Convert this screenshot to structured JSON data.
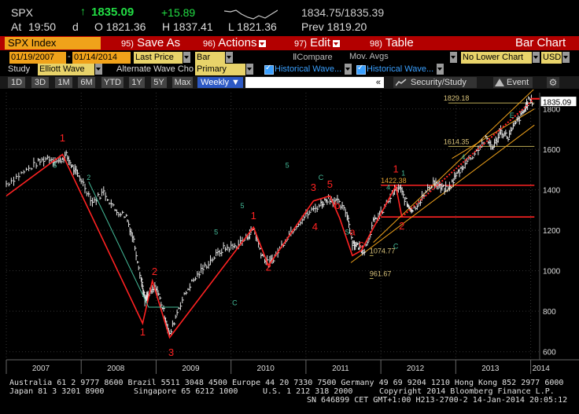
{
  "quote": {
    "ticker": "SPX",
    "up_arrow": "↑",
    "last": "1835.09",
    "change": "+15.89",
    "bid_ask": "1834.75/1835.39",
    "at_label": "At",
    "time": "19:50",
    "d_label": "d",
    "open": "O 1821.36",
    "high": "H 1837.41",
    "low": "L 1821.36",
    "prev": "Prev  1819.20"
  },
  "menu": {
    "security": "SPX Index",
    "save_num": "95)",
    "save": "Save As",
    "actions_num": "96)",
    "actions": "Actions",
    "edit_num": "97)",
    "edit": "Edit",
    "table_num": "98)",
    "table": "Table",
    "bar_chart": "Bar Chart"
  },
  "settings": {
    "start_date": "01/19/2007",
    "dash": "-",
    "end_date": "01/14/2014",
    "field": "Last Price",
    "style": "Bar",
    "compare": "Compare",
    "mov_avgs": "Mov. Avgs",
    "lower_chart": "No Lower Chart",
    "currency": "USD",
    "study_label": "Study",
    "study": "Elliott Wave",
    "alt_wave": "Alternate Wave Cho",
    "primary": "Primary",
    "hist1": "Historical Wave...",
    "hist2": "Historical Wave..."
  },
  "timeframes": [
    "1D",
    "3D",
    "1M",
    "6M",
    "YTD",
    "1Y",
    "5Y",
    "Max"
  ],
  "period": "Weekly ▼",
  "tool": {
    "security_study": "Security/Study",
    "event": "Event",
    "chart_icon": "chart-icon",
    "event_icon": "event-icon",
    "gear_icon": "gear-icon"
  },
  "colors": {
    "accent_red": "#b30000",
    "up": "#22dd44",
    "field_bg": "#e8d36a",
    "selected": "#2d59c4",
    "wave_red": "#ff2222",
    "wave_channel": "#f0a21a"
  },
  "chart_data": {
    "type": "line",
    "x_ticks": [
      "2007",
      "2008",
      "2009",
      "2010",
      "2011",
      "2012",
      "2013",
      "2014"
    ],
    "y_ticks": [
      600,
      800,
      1000,
      1200,
      1400,
      1600,
      1800
    ],
    "ylim": [
      560,
      1880
    ],
    "price_tag": "1835.09",
    "grid": true,
    "series": [
      {
        "values": [
          [
            2007.0,
            1430
          ],
          [
            2007.2,
            1480
          ],
          [
            2007.4,
            1530
          ],
          [
            2007.55,
            1560
          ],
          [
            2007.7,
            1540
          ],
          [
            2007.8,
            1570
          ],
          [
            2007.9,
            1500
          ],
          [
            2008.0,
            1450
          ],
          [
            2008.15,
            1340
          ],
          [
            2008.3,
            1390
          ],
          [
            2008.45,
            1300
          ],
          [
            2008.6,
            1270
          ],
          [
            2008.7,
            1150
          ],
          [
            2008.8,
            960
          ],
          [
            2008.85,
            850
          ],
          [
            2008.9,
            880
          ],
          [
            2009.0,
            920
          ],
          [
            2009.1,
            800
          ],
          [
            2009.18,
            680
          ],
          [
            2009.3,
            820
          ],
          [
            2009.45,
            930
          ],
          [
            2009.6,
            1000
          ],
          [
            2009.75,
            1060
          ],
          [
            2009.9,
            1110
          ],
          [
            2010.05,
            1120
          ],
          [
            2010.2,
            1160
          ],
          [
            2010.3,
            1210
          ],
          [
            2010.4,
            1090
          ],
          [
            2010.5,
            1030
          ],
          [
            2010.6,
            1080
          ],
          [
            2010.75,
            1170
          ],
          [
            2010.9,
            1240
          ],
          [
            2011.05,
            1290
          ],
          [
            2011.2,
            1330
          ],
          [
            2011.3,
            1360
          ],
          [
            2011.42,
            1340
          ],
          [
            2011.55,
            1280
          ],
          [
            2011.62,
            1140
          ],
          [
            2011.7,
            1120
          ],
          [
            2011.78,
            1100
          ],
          [
            2011.9,
            1240
          ],
          [
            2012.0,
            1280
          ],
          [
            2012.15,
            1380
          ],
          [
            2012.25,
            1410
          ],
          [
            2012.35,
            1330
          ],
          [
            2012.42,
            1300
          ],
          [
            2012.55,
            1360
          ],
          [
            2012.7,
            1440
          ],
          [
            2012.8,
            1410
          ],
          [
            2012.9,
            1400
          ],
          [
            2013.0,
            1470
          ],
          [
            2013.1,
            1520
          ],
          [
            2013.25,
            1580
          ],
          [
            2013.4,
            1650
          ],
          [
            2013.5,
            1610
          ],
          [
            2013.6,
            1690
          ],
          [
            2013.7,
            1660
          ],
          [
            2013.8,
            1730
          ],
          [
            2013.9,
            1780
          ],
          [
            2013.97,
            1840
          ],
          [
            2014.03,
            1835
          ]
        ]
      }
    ],
    "levels": [
      {
        "value": 1829.18,
        "label": "1829.18",
        "color": "#bbaa55"
      },
      {
        "value": 1614.35,
        "label": "1614.35",
        "color": "#bbaa55"
      },
      {
        "value": 1422.38,
        "label": "1422.38",
        "color": "#ff2222"
      },
      {
        "value": 1266,
        "label": "",
        "color": "#ff2222"
      },
      {
        "value": 1074.77,
        "label": "1074.77",
        "color": "#bbaa55"
      },
      {
        "value": 961.67,
        "label": "961.67",
        "color": "#bbaa55"
      }
    ],
    "wave_labels": [
      {
        "text": "1",
        "x": 2007.75,
        "y": 1640,
        "color": "#ff2222"
      },
      {
        "text": "1",
        "x": 2008.82,
        "y": 680,
        "color": "#ff2222"
      },
      {
        "text": "2",
        "x": 2008.98,
        "y": 980,
        "color": "#ff2222"
      },
      {
        "text": "3",
        "x": 2009.2,
        "y": 580,
        "color": "#ff2222"
      },
      {
        "text": "1",
        "x": 2010.3,
        "y": 1255,
        "color": "#ff2222"
      },
      {
        "text": "2",
        "x": 2010.5,
        "y": 1000,
        "color": "#ff2222"
      },
      {
        "text": "3",
        "x": 2011.1,
        "y": 1395,
        "color": "#ff2222"
      },
      {
        "text": "4",
        "x": 2011.12,
        "y": 1200,
        "color": "#ff2222"
      },
      {
        "text": "5",
        "x": 2011.32,
        "y": 1410,
        "color": "#ff2222"
      },
      {
        "text": "b",
        "x": 2011.42,
        "y": 1305,
        "color": "#ff2222"
      },
      {
        "text": "a",
        "x": 2011.62,
        "y": 1175,
        "color": "#ff2222"
      },
      {
        "text": "c",
        "x": 2011.74,
        "y": 1115,
        "color": "#ff2222"
      },
      {
        "text": "1",
        "x": 2012.2,
        "y": 1485,
        "color": "#ff2222"
      },
      {
        "text": "2",
        "x": 2012.28,
        "y": 1205,
        "color": "#ff2222"
      },
      {
        "text": "5",
        "x": 2007.65,
        "y": 1510,
        "color": "#44bb99"
      },
      {
        "text": "2",
        "x": 2008.1,
        "y": 1450,
        "color": "#44bb99"
      },
      {
        "text": "5",
        "x": 2010.15,
        "y": 1310,
        "color": "#44bb99"
      },
      {
        "text": "5",
        "x": 2010.75,
        "y": 1510,
        "color": "#44bb99"
      },
      {
        "text": "C",
        "x": 2011.2,
        "y": 1450,
        "color": "#44bb99"
      },
      {
        "text": "4",
        "x": 2012.1,
        "y": 1400,
        "color": "#44bb99"
      },
      {
        "text": "1",
        "x": 2012.3,
        "y": 1470,
        "color": "#44bb99"
      },
      {
        "text": "C",
        "x": 2012.2,
        "y": 1110,
        "color": "#44bb99"
      },
      {
        "text": "4",
        "x": 2013.1,
        "y": 1550,
        "color": "#44bb99"
      },
      {
        "text": "E",
        "x": 2013.75,
        "y": 1755,
        "color": "#44bb99"
      },
      {
        "text": "C",
        "x": 2010.05,
        "y": 830,
        "color": "#44bb99"
      },
      {
        "text": "S",
        "x": 2011.55,
        "y": 1180,
        "color": "#44bb99"
      },
      {
        "text": "5",
        "x": 2009.8,
        "y": 1180,
        "color": "#44bb99"
      }
    ]
  },
  "footer": {
    "line1": "Australia 61 2 9777 8600 Brazil 5511 3048 4500 Europe 44 20 7330 7500 Germany 49 69 9204 1210 Hong Kong 852 2977 6000",
    "line2a": "Japan 81 3 3201 8900",
    "line2b": "Singapore 65 6212 1000",
    "line2c": "U.S. 1 212 318 2000",
    "line2d": "Copyright 2014 Bloomberg Finance L.P.",
    "line3": "SN 646899 CET  GMT+1:00 H213-2700-2 14-Jan-2014 20:05:12"
  }
}
